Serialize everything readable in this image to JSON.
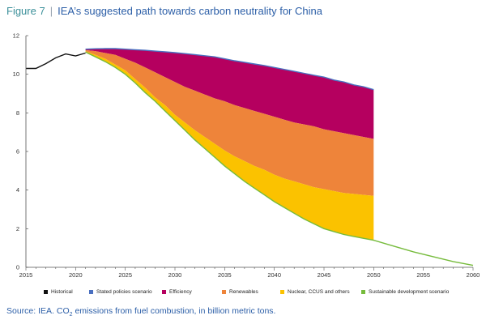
{
  "header": {
    "figure_label": "Figure 7",
    "separator": "|",
    "title": "IEA’s suggested path towards carbon neutrality for China"
  },
  "source": {
    "prefix": "Source: IEA. CO",
    "subscript": "2",
    "suffix": " emissions from fuel combustion, in billion metric tons."
  },
  "colors": {
    "historical": "#111111",
    "stated": "#4a6fc0",
    "efficiency": "#b5005f",
    "renewables": "#ee843a",
    "nuclear": "#fbc200",
    "sustainable": "#76bb3c",
    "axis": "#555555",
    "text": "#2b5ea7"
  },
  "chart_data": {
    "type": "area",
    "xlim": [
      2015,
      2060
    ],
    "ylim": [
      0,
      12
    ],
    "x_ticks": [
      2015,
      2020,
      2025,
      2030,
      2035,
      2040,
      2045,
      2050,
      2055,
      2060
    ],
    "y_ticks": [
      0,
      2,
      4,
      6,
      8,
      10,
      12
    ],
    "x_tick_labels": [
      "2015",
      "2020",
      "2025",
      "2030",
      "2035",
      "2040",
      "2045",
      "2050",
      "2055",
      "2060"
    ],
    "y_tick_labels": [
      "0",
      "2",
      "4",
      "6",
      "8",
      "10",
      "12"
    ],
    "historical": {
      "name": "Historical",
      "x": [
        2015,
        2016,
        2017,
        2018,
        2019,
        2020,
        2021
      ],
      "y": [
        10.3,
        10.3,
        10.55,
        10.85,
        11.05,
        10.95,
        11.1
      ]
    },
    "bands_x": [
      2021,
      2022,
      2023,
      2024,
      2025,
      2026,
      2027,
      2028,
      2029,
      2030,
      2031,
      2032,
      2033,
      2034,
      2035,
      2036,
      2037,
      2038,
      2039,
      2040,
      2041,
      2042,
      2043,
      2044,
      2045,
      2046,
      2047,
      2048,
      2049,
      2050
    ],
    "stated_policies": {
      "name": "Stated policies scenario",
      "y": [
        11.3,
        11.32,
        11.33,
        11.33,
        11.3,
        11.27,
        11.24,
        11.2,
        11.16,
        11.12,
        11.07,
        11.02,
        10.96,
        10.9,
        10.8,
        10.7,
        10.62,
        10.53,
        10.45,
        10.35,
        10.25,
        10.15,
        10.05,
        9.95,
        9.85,
        9.7,
        9.6,
        9.45,
        9.35,
        9.2
      ]
    },
    "efficiency_bottom": [
      11.25,
      11.2,
      11.1,
      11.0,
      10.8,
      10.6,
      10.35,
      10.1,
      9.85,
      9.6,
      9.35,
      9.15,
      8.95,
      8.75,
      8.6,
      8.4,
      8.25,
      8.1,
      7.95,
      7.8,
      7.65,
      7.5,
      7.4,
      7.3,
      7.15,
      7.05,
      6.95,
      6.85,
      6.75,
      6.65
    ],
    "renewables_bottom": [
      11.2,
      11.0,
      10.8,
      10.5,
      10.2,
      9.75,
      9.3,
      8.8,
      8.4,
      7.9,
      7.5,
      7.1,
      6.75,
      6.4,
      6.05,
      5.75,
      5.5,
      5.25,
      5.05,
      4.8,
      4.6,
      4.45,
      4.3,
      4.15,
      4.05,
      3.95,
      3.85,
      3.8,
      3.75,
      3.7
    ],
    "sustainable_development": {
      "name": "Sustainable development scenario",
      "x": [
        2021,
        2022,
        2023,
        2024,
        2025,
        2026,
        2027,
        2028,
        2029,
        2030,
        2031,
        2032,
        2033,
        2034,
        2035,
        2036,
        2037,
        2038,
        2039,
        2040,
        2041,
        2042,
        2043,
        2044,
        2045,
        2046,
        2047,
        2048,
        2049,
        2050,
        2052,
        2054,
        2056,
        2058,
        2060
      ],
      "y": [
        11.15,
        10.9,
        10.65,
        10.35,
        10.0,
        9.55,
        9.05,
        8.6,
        8.1,
        7.6,
        7.1,
        6.6,
        6.15,
        5.7,
        5.25,
        4.85,
        4.45,
        4.1,
        3.75,
        3.4,
        3.1,
        2.8,
        2.5,
        2.25,
        2.0,
        1.85,
        1.7,
        1.6,
        1.5,
        1.4,
        1.1,
        0.8,
        0.55,
        0.3,
        0.1
      ]
    },
    "legend": [
      {
        "label": "Historical",
        "color_key": "historical"
      },
      {
        "label": "Stated policies scenario",
        "color_key": "stated"
      },
      {
        "label": "Efficiency",
        "color_key": "efficiency"
      },
      {
        "label": "Renewables",
        "color_key": "renewables"
      },
      {
        "label": "Nuclear, CCUS and others",
        "color_key": "nuclear"
      },
      {
        "label": "Sustainable development scenario",
        "color_key": "sustainable"
      }
    ]
  }
}
